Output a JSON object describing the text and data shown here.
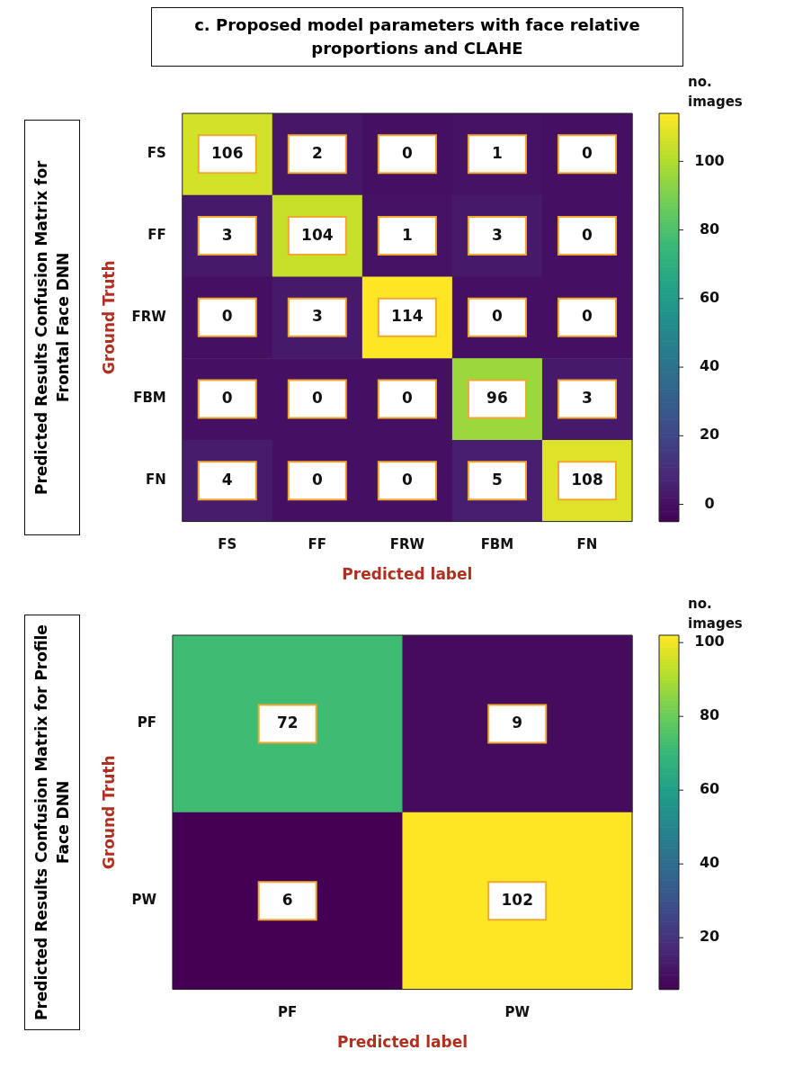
{
  "chart_data": [
    {
      "type": "heatmap",
      "title": "c. Proposed model parameters with face relative proportions and CLAHE",
      "annotations": [
        "Predicted Results Confusion Matrix for Frontal Face DNN"
      ],
      "xlabel": "Predicted label",
      "ylabel": "Ground Truth",
      "clabel": "no. images",
      "categories": [
        "FS",
        "FF",
        "FRW",
        "FBM",
        "FN"
      ],
      "y_categories": [
        "FS",
        "FF",
        "FRW",
        "FBM",
        "FN"
      ],
      "cells": [
        [
          106,
          2,
          0,
          1,
          0
        ],
        [
          3,
          104,
          1,
          3,
          0
        ],
        [
          0,
          3,
          114,
          0,
          0
        ],
        [
          0,
          0,
          0,
          96,
          3
        ],
        [
          4,
          0,
          0,
          5,
          108
        ]
      ],
      "data_labels": true,
      "clim": [
        -5,
        114
      ],
      "cticks": [
        0,
        20,
        40,
        60,
        80,
        100
      ]
    },
    {
      "type": "heatmap",
      "annotations": [
        "Predicted Results Confusion Matrix for Profile Face DNN"
      ],
      "xlabel": "Predicted label",
      "ylabel": "Ground Truth",
      "clabel": "no. images",
      "categories": [
        "PF",
        "PW"
      ],
      "y_categories": [
        "PF",
        "PW"
      ],
      "cells": [
        [
          72,
          9
        ],
        [
          6,
          102
        ]
      ],
      "data_labels": true,
      "clim": [
        6,
        102
      ],
      "cticks": [
        20,
        40,
        60,
        80,
        100
      ]
    }
  ]
}
